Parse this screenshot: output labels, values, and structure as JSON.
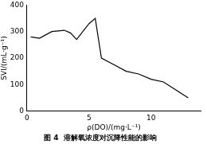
{
  "chart_data": {
    "type": "line",
    "title": "图 4  溶解氧浓度对沉降性能的影响",
    "x_label": "ρ(DO)/(mg·L⁻¹)",
    "y_label": "SVI/(mL·g⁻¹)",
    "x": [
      0.3,
      1,
      2,
      3,
      3.5,
      4,
      5,
      5.5,
      6,
      7,
      8,
      9,
      10,
      11,
      12,
      13
    ],
    "values": [
      280,
      275,
      300,
      305,
      295,
      270,
      330,
      350,
      200,
      175,
      150,
      140,
      120,
      110,
      80,
      50
    ],
    "color": "#000000",
    "marker": "none",
    "xlim": [
      0,
      14
    ],
    "xticks": [
      0,
      5,
      10
    ],
    "ylim": [
      0,
      400
    ],
    "yticks": [
      0,
      100,
      200,
      300,
      400
    ],
    "grid": false
  }
}
